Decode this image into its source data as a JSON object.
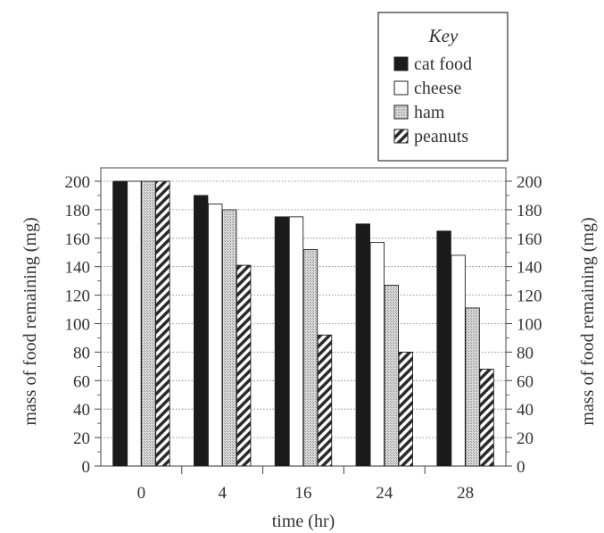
{
  "chart_data": {
    "type": "bar",
    "title": "",
    "xlabel": "time (hr)",
    "ylabel": "mass of food remaining (mg)",
    "ylabel_right": "mass of food remaining (mg)",
    "categories": [
      "0",
      "4",
      "16",
      "24",
      "28"
    ],
    "ylim": [
      0,
      200
    ],
    "yticks": [
      "0",
      "20",
      "40",
      "60",
      "80",
      "100",
      "120",
      "140",
      "160",
      "180",
      "200"
    ],
    "grid": "horizontal dotted",
    "legend": {
      "title": "Key",
      "placement": "top-right",
      "entries": [
        "cat food",
        "cheese",
        "ham",
        "peanuts"
      ]
    },
    "series": [
      {
        "name": "cat food",
        "values": [
          200,
          190,
          175,
          170,
          165
        ],
        "style": "solid-black",
        "color": "#1a1a1a"
      },
      {
        "name": "cheese",
        "values": [
          200,
          184,
          175,
          157,
          148
        ],
        "style": "white",
        "color": "#ffffff"
      },
      {
        "name": "ham",
        "values": [
          200,
          180,
          152,
          127,
          111
        ],
        "style": "stippled-gray",
        "color": "#c8c8c8"
      },
      {
        "name": "peanuts",
        "values": [
          200,
          141,
          92,
          80,
          68
        ],
        "style": "diagonal-hatch",
        "color": "#2a2a2a"
      }
    ]
  }
}
